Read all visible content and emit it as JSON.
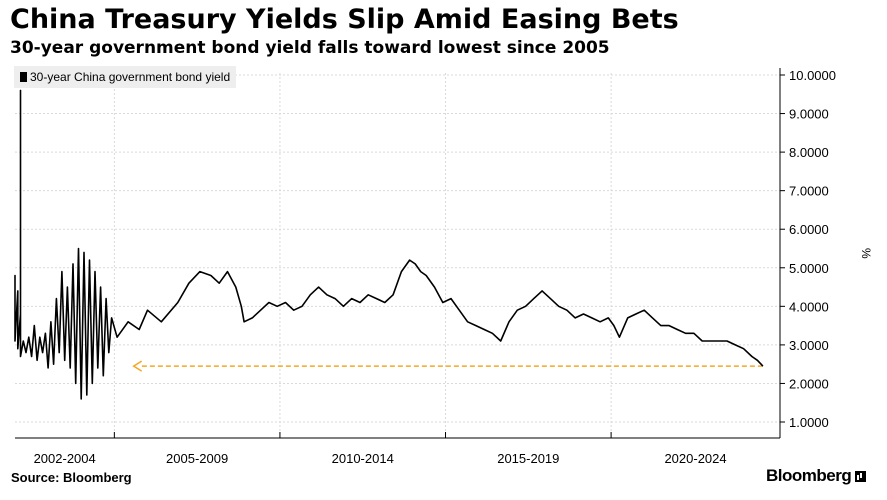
{
  "header": {
    "title": "China Treasury Yields Slip Amid Easing Bets",
    "subtitle": "30-year government bond yield falls toward lowest since 2005"
  },
  "footer": {
    "source": "Source: Bloomberg",
    "brand": "Bloomberg",
    "brand_icon": "bloomberg-chart-icon"
  },
  "colors": {
    "series": "#000000",
    "reference_arrow": "#f5a623",
    "grid": "#d9d9d9",
    "legend_bg": "#eeeeee"
  },
  "chart_data": {
    "type": "line",
    "title": "China Treasury Yields Slip Amid Easing Bets",
    "subtitle": "30-year government bond yield falls toward lowest since 2005",
    "xlabel": "",
    "ylabel": "%",
    "ylim": [
      1,
      10
    ],
    "y_ticks": [
      "10.0000",
      "9.0000",
      "8.0000",
      "7.0000",
      "6.0000",
      "5.0000",
      "4.0000",
      "3.0000",
      "2.0000",
      "1.0000"
    ],
    "y_axis_side": "right",
    "x_tick_labels": [
      "2002-2004",
      "2005-2009",
      "2010-2014",
      "2015-2019",
      "2020-2024"
    ],
    "grid": true,
    "legend": {
      "entries": [
        "30-year China government bond yield"
      ],
      "position": "top-left"
    },
    "annotations": [
      {
        "type": "arrow",
        "style": "dashed",
        "color": "#f5a623",
        "y": 2.45,
        "from": "2024-08",
        "to": "2005-08"
      }
    ],
    "series": [
      {
        "name": "30-year China government bond yield",
        "points": [
          [
            "2002-01",
            3.4
          ],
          [
            "2002-01",
            4.8
          ],
          [
            "2002-01",
            3.1
          ],
          [
            "2002-02",
            4.4
          ],
          [
            "2002-02",
            2.9
          ],
          [
            "2002-03",
            3.8
          ],
          [
            "2002-03",
            9.6
          ],
          [
            "2002-03",
            2.7
          ],
          [
            "2002-04",
            3.1
          ],
          [
            "2002-05",
            2.8
          ],
          [
            "2002-06",
            3.2
          ],
          [
            "2002-07",
            2.7
          ],
          [
            "2002-08",
            3.5
          ],
          [
            "2002-09",
            2.6
          ],
          [
            "2002-10",
            3.2
          ],
          [
            "2002-11",
            2.8
          ],
          [
            "2002-12",
            3.3
          ],
          [
            "2003-01",
            2.4
          ],
          [
            "2003-02",
            3.6
          ],
          [
            "2003-03",
            2.5
          ],
          [
            "2003-04",
            4.2
          ],
          [
            "2003-05",
            2.8
          ],
          [
            "2003-06",
            4.9
          ],
          [
            "2003-07",
            2.6
          ],
          [
            "2003-08",
            4.5
          ],
          [
            "2003-09",
            2.4
          ],
          [
            "2003-10",
            5.1
          ],
          [
            "2003-11",
            2.0
          ],
          [
            "2003-12",
            5.5
          ],
          [
            "2004-01",
            1.6
          ],
          [
            "2004-02",
            5.4
          ],
          [
            "2004-03",
            1.7
          ],
          [
            "2004-04",
            5.2
          ],
          [
            "2004-05",
            2.0
          ],
          [
            "2004-06",
            4.9
          ],
          [
            "2004-07",
            2.4
          ],
          [
            "2004-08",
            4.5
          ],
          [
            "2004-09",
            2.2
          ],
          [
            "2004-10",
            4.2
          ],
          [
            "2004-11",
            2.8
          ],
          [
            "2004-12",
            3.7
          ],
          [
            "2005-02",
            3.2
          ],
          [
            "2005-06",
            3.6
          ],
          [
            "2005-10",
            3.4
          ],
          [
            "2006-01",
            3.9
          ],
          [
            "2006-06",
            3.6
          ],
          [
            "2006-12",
            4.1
          ],
          [
            "2007-04",
            4.6
          ],
          [
            "2007-08",
            4.9
          ],
          [
            "2007-12",
            4.8
          ],
          [
            "2008-03",
            4.6
          ],
          [
            "2008-06",
            4.9
          ],
          [
            "2008-09",
            4.5
          ],
          [
            "2008-11",
            4.0
          ],
          [
            "2008-12",
            3.6
          ],
          [
            "2009-03",
            3.7
          ],
          [
            "2009-06",
            3.9
          ],
          [
            "2009-09",
            4.1
          ],
          [
            "2009-12",
            4.0
          ],
          [
            "2010-03",
            4.1
          ],
          [
            "2010-06",
            3.9
          ],
          [
            "2010-09",
            4.0
          ],
          [
            "2010-12",
            4.3
          ],
          [
            "2011-03",
            4.5
          ],
          [
            "2011-06",
            4.3
          ],
          [
            "2011-09",
            4.2
          ],
          [
            "2011-12",
            4.0
          ],
          [
            "2012-03",
            4.2
          ],
          [
            "2012-06",
            4.1
          ],
          [
            "2012-09",
            4.3
          ],
          [
            "2012-12",
            4.2
          ],
          [
            "2013-03",
            4.1
          ],
          [
            "2013-06",
            4.3
          ],
          [
            "2013-09",
            4.9
          ],
          [
            "2013-12",
            5.2
          ],
          [
            "2014-02",
            5.1
          ],
          [
            "2014-04",
            4.9
          ],
          [
            "2014-06",
            4.8
          ],
          [
            "2014-09",
            4.5
          ],
          [
            "2014-12",
            4.1
          ],
          [
            "2015-03",
            4.2
          ],
          [
            "2015-06",
            3.9
          ],
          [
            "2015-09",
            3.6
          ],
          [
            "2015-12",
            3.5
          ],
          [
            "2016-03",
            3.4
          ],
          [
            "2016-06",
            3.3
          ],
          [
            "2016-09",
            3.1
          ],
          [
            "2016-12",
            3.6
          ],
          [
            "2017-03",
            3.9
          ],
          [
            "2017-06",
            4.0
          ],
          [
            "2017-09",
            4.2
          ],
          [
            "2017-12",
            4.4
          ],
          [
            "2018-03",
            4.2
          ],
          [
            "2018-06",
            4.0
          ],
          [
            "2018-09",
            3.9
          ],
          [
            "2018-12",
            3.7
          ],
          [
            "2019-03",
            3.8
          ],
          [
            "2019-06",
            3.7
          ],
          [
            "2019-09",
            3.6
          ],
          [
            "2019-12",
            3.7
          ],
          [
            "2020-02",
            3.5
          ],
          [
            "2020-04",
            3.2
          ],
          [
            "2020-07",
            3.7
          ],
          [
            "2020-10",
            3.8
          ],
          [
            "2021-01",
            3.9
          ],
          [
            "2021-04",
            3.7
          ],
          [
            "2021-07",
            3.5
          ],
          [
            "2021-10",
            3.5
          ],
          [
            "2022-01",
            3.4
          ],
          [
            "2022-04",
            3.3
          ],
          [
            "2022-07",
            3.3
          ],
          [
            "2022-10",
            3.1
          ],
          [
            "2023-01",
            3.1
          ],
          [
            "2023-04",
            3.1
          ],
          [
            "2023-07",
            3.1
          ],
          [
            "2023-10",
            3.0
          ],
          [
            "2024-01",
            2.9
          ],
          [
            "2024-04",
            2.7
          ],
          [
            "2024-06",
            2.6
          ],
          [
            "2024-08",
            2.45
          ]
        ]
      }
    ]
  }
}
